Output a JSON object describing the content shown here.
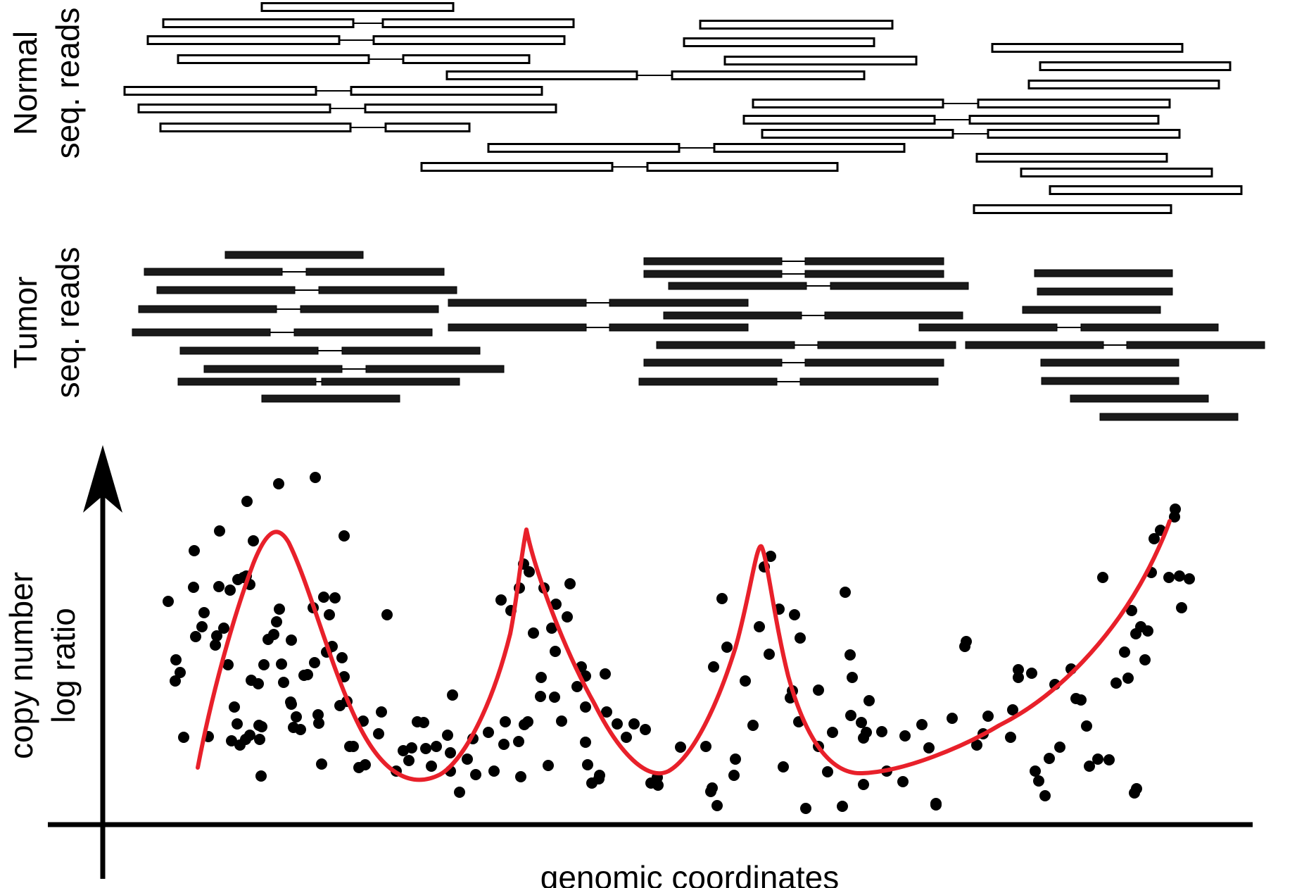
{
  "normal_panel": {
    "label_line1": "Normal",
    "label_line2": "seq. reads",
    "read_style": "outlined"
  },
  "tumor_panel": {
    "label_line1": "Tumor",
    "label_line2": "seq. reads",
    "read_style": "filled"
  },
  "plot": {
    "y_label_line1": "copy number",
    "y_label_line2": "log ratio",
    "x_label": "genomic coordinates",
    "curve_color": "#e8202a",
    "point_color": "#000000"
  }
}
